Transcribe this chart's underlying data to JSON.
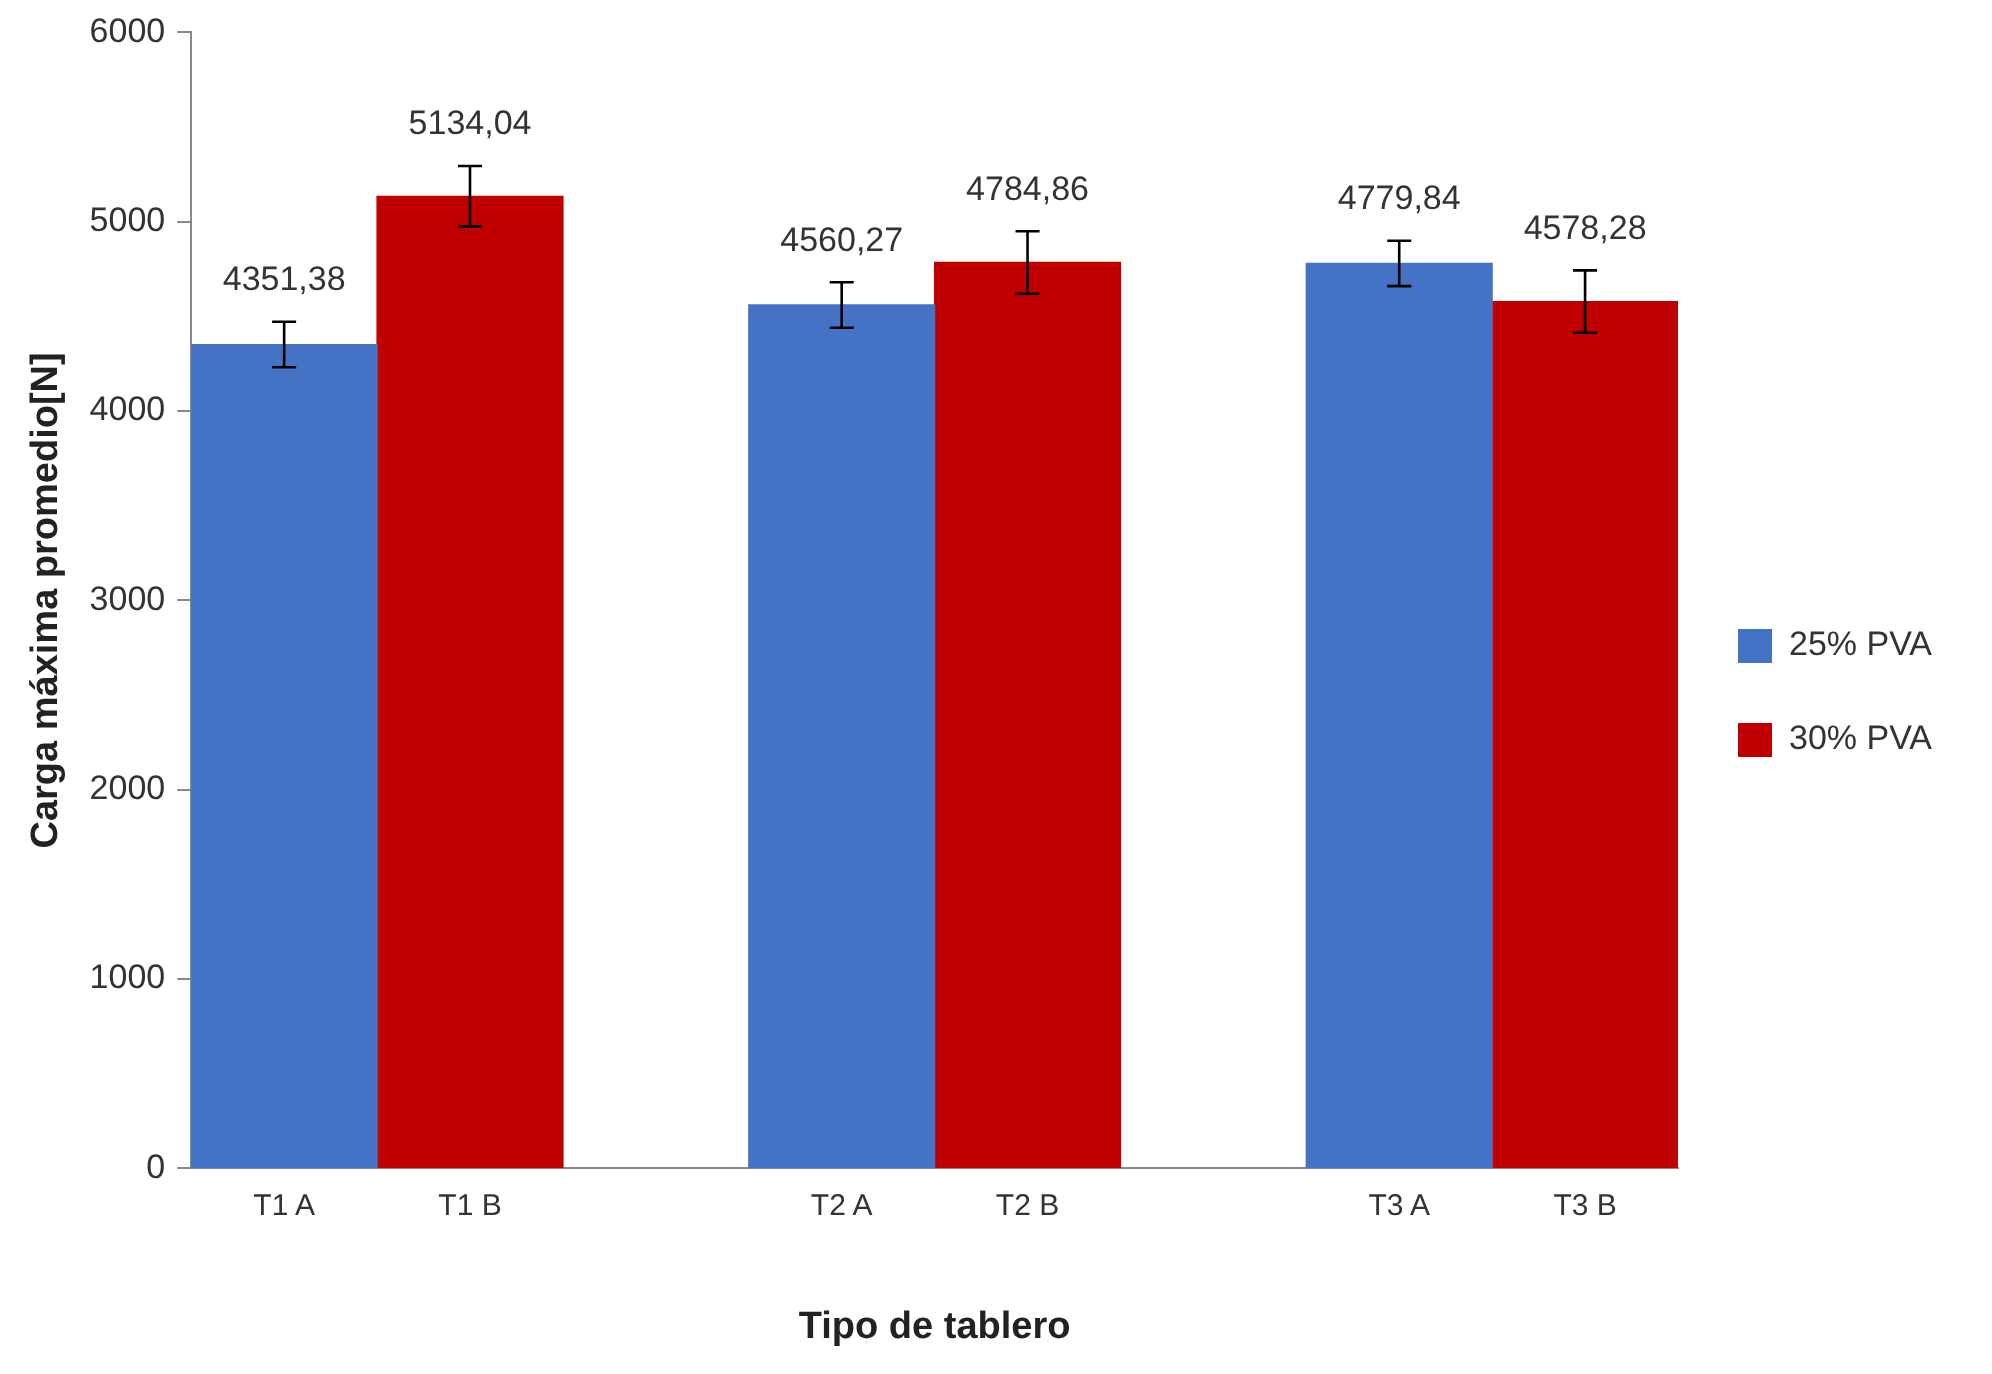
{
  "chart_data": {
    "type": "bar",
    "xlabel": "Tipo de tablero",
    "ylabel": "Carga máxima promedio[N]",
    "categories": [
      "T1 A",
      "T1 B",
      null,
      "T2 A",
      "T2 B",
      null,
      "T3 A",
      "T3 B"
    ],
    "series": [
      {
        "name": "25% PVA",
        "color": "#4472c4",
        "values": [
          4351.38,
          null,
          null,
          4560.27,
          null,
          null,
          4779.84,
          null
        ],
        "errors": [
          120,
          null,
          null,
          120,
          null,
          null,
          120,
          null
        ],
        "value_labels": [
          "4351,38",
          null,
          null,
          "4560,27",
          null,
          null,
          "4779,84",
          null
        ]
      },
      {
        "name": "30% PVA",
        "color": "#c00000",
        "values": [
          null,
          5134.04,
          null,
          null,
          4784.86,
          null,
          null,
          4578.28
        ],
        "errors": [
          null,
          160,
          null,
          null,
          165,
          null,
          null,
          165
        ],
        "value_labels": [
          null,
          "5134,04",
          null,
          null,
          "4784,86",
          null,
          null,
          "4578,28"
        ]
      }
    ],
    "ylim": [
      0,
      6000
    ],
    "yticks": [
      0,
      1000,
      2000,
      3000,
      4000,
      5000,
      6000
    ],
    "grid": false,
    "legend": "right"
  }
}
